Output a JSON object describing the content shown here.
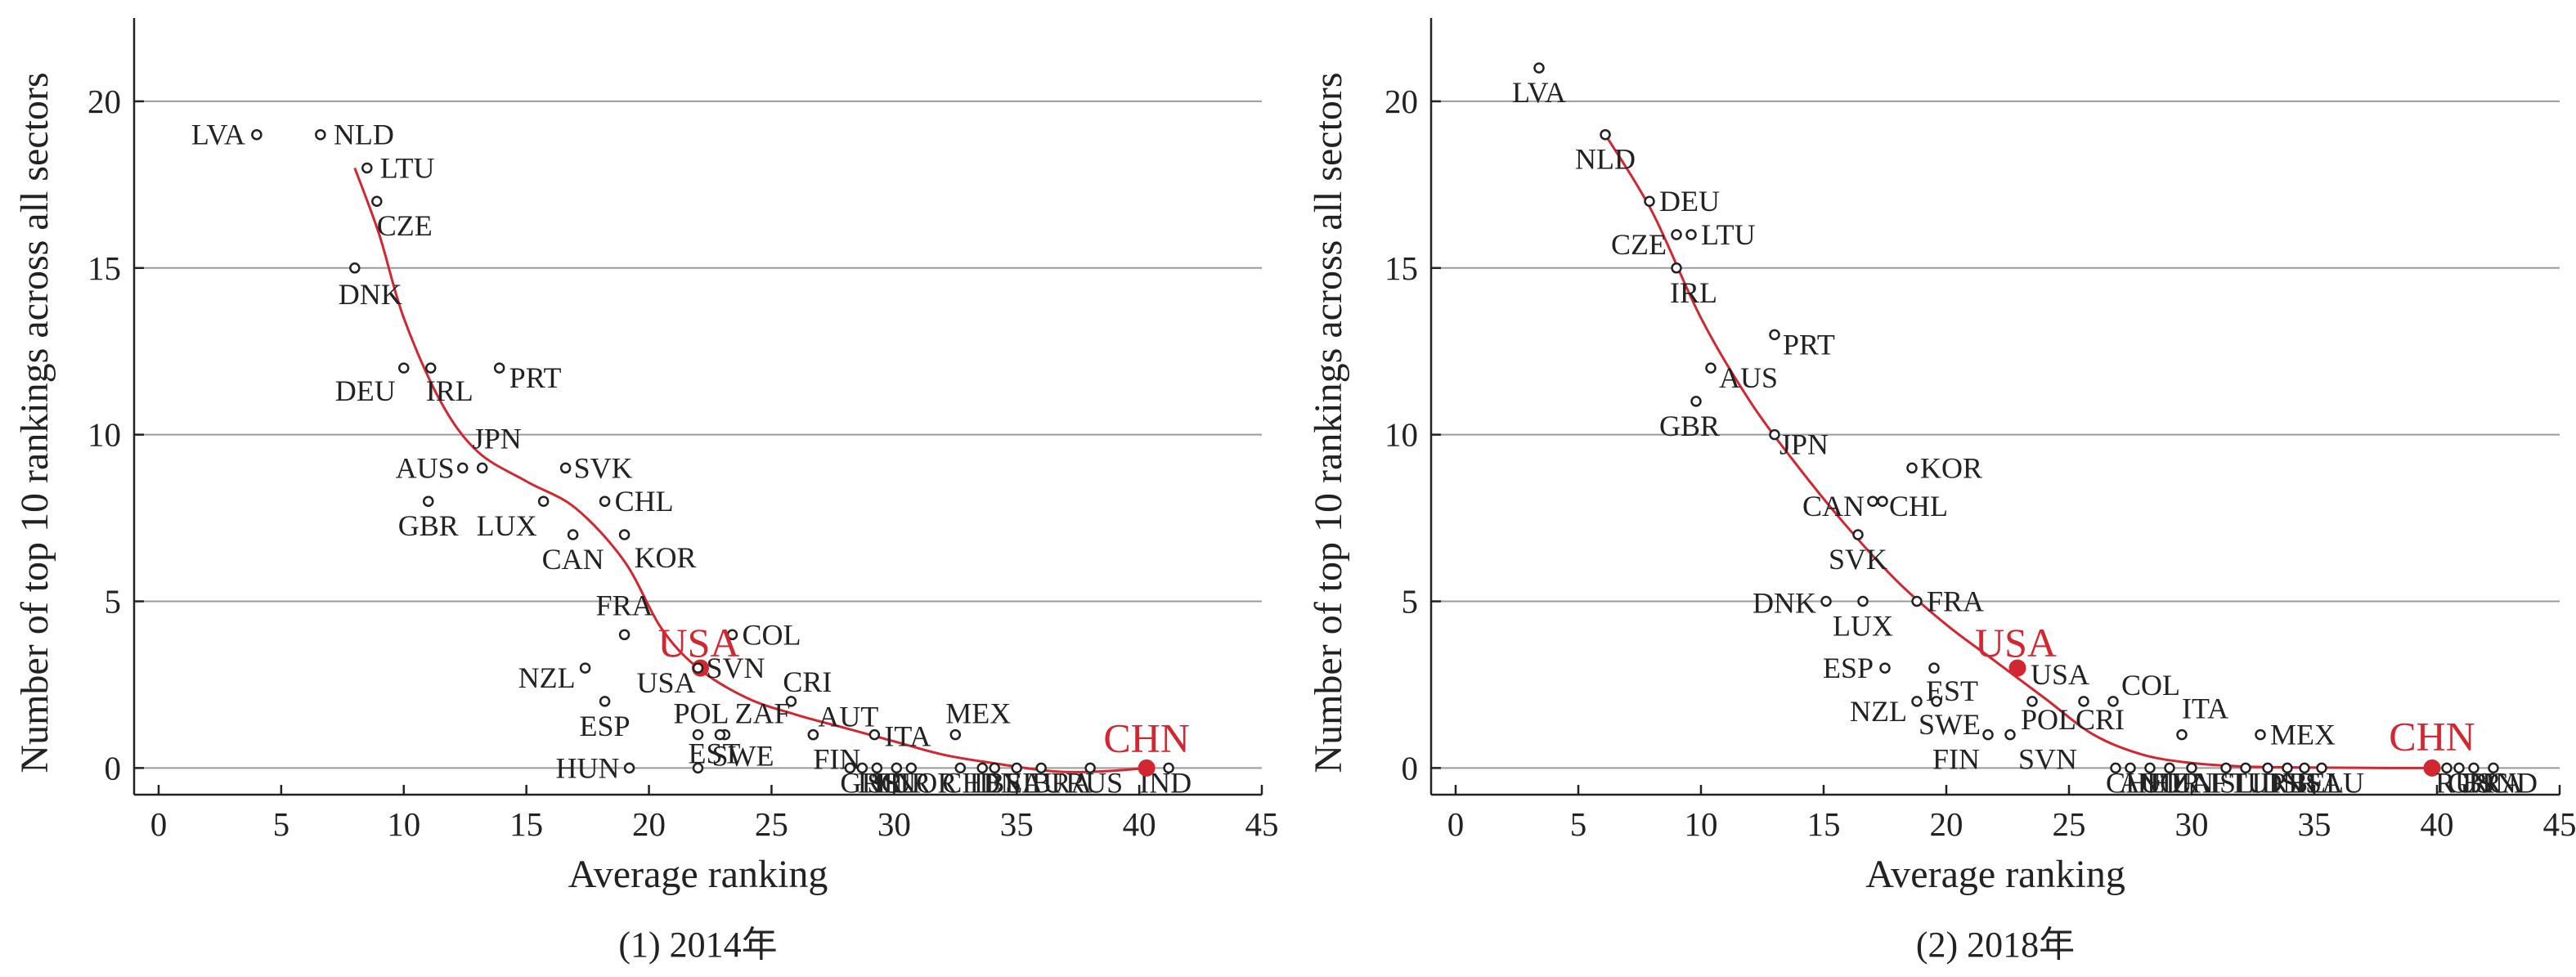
{
  "colors": {
    "accent": "#d22630",
    "ink": "#222222",
    "grid": "#9a9a9a"
  },
  "chart_data": [
    {
      "type": "scatter",
      "caption": "(1) 2014年",
      "xlabel": "Average ranking",
      "ylabel": "Number of top 10 rankings across all sectors",
      "xlim": [
        -1,
        45
      ],
      "ylim": [
        -0.8,
        22.5
      ],
      "xticks": [
        0,
        5,
        10,
        15,
        20,
        25,
        30,
        35,
        40,
        45
      ],
      "yticks": [
        0,
        5,
        10,
        15,
        20
      ],
      "grid": "horizontal",
      "series": [
        {
          "points": [
            {
              "label": "LVA",
              "x": 4.0,
              "y": 19
            },
            {
              "label": "NLD",
              "x": 6.6,
              "y": 19
            },
            {
              "label": "LTU",
              "x": 8.5,
              "y": 18
            },
            {
              "label": "CZE",
              "x": 8.9,
              "y": 17
            },
            {
              "label": "DNK",
              "x": 8.0,
              "y": 15
            },
            {
              "label": "DEU",
              "x": 10.0,
              "y": 12
            },
            {
              "label": "IRL",
              "x": 11.1,
              "y": 12
            },
            {
              "label": "PRT",
              "x": 13.9,
              "y": 12
            },
            {
              "label": "AUS",
              "x": 12.4,
              "y": 9
            },
            {
              "label": "JPN",
              "x": 13.2,
              "y": 9
            },
            {
              "label": "SVK",
              "x": 16.6,
              "y": 9
            },
            {
              "label": "GBR",
              "x": 11.0,
              "y": 8
            },
            {
              "label": "LUX",
              "x": 15.7,
              "y": 8
            },
            {
              "label": "CHL",
              "x": 18.2,
              "y": 8
            },
            {
              "label": "CAN",
              "x": 16.9,
              "y": 7
            },
            {
              "label": "KOR",
              "x": 19.0,
              "y": 7
            },
            {
              "label": "FRA",
              "x": 19.0,
              "y": 4
            },
            {
              "label": "COL",
              "x": 23.4,
              "y": 4
            },
            {
              "label": "NZL",
              "x": 17.4,
              "y": 3
            },
            {
              "label": "USA",
              "x": 22.1,
              "y": 3
            },
            {
              "label": "SVN",
              "x": 22.0,
              "y": 3
            },
            {
              "label": "CRI",
              "x": 25.8,
              "y": 2
            },
            {
              "label": "ESP",
              "x": 18.2,
              "y": 2
            },
            {
              "label": "POL",
              "x": 22.0,
              "y": 1
            },
            {
              "label": "ZAF",
              "x": 23.1,
              "y": 1
            },
            {
              "label": "AUT",
              "x": 26.7,
              "y": 1
            },
            {
              "label": "SWE",
              "x": 22.9,
              "y": 1
            },
            {
              "label": "ITA",
              "x": 29.2,
              "y": 1
            },
            {
              "label": "FIN",
              "x": 26.7,
              "y": 1
            },
            {
              "label": "MEX",
              "x": 32.5,
              "y": 1
            },
            {
              "label": "HUN",
              "x": 19.2,
              "y": 0
            },
            {
              "label": "EST",
              "x": 22.0,
              "y": 0
            },
            {
              "label": "GRC",
              "x": 28.2,
              "y": 0
            },
            {
              "label": "ISR",
              "x": 28.7,
              "y": 0
            },
            {
              "label": "ISL",
              "x": 29.3,
              "y": 0
            },
            {
              "label": "TUR",
              "x": 30.1,
              "y": 0
            },
            {
              "label": "NOR",
              "x": 30.7,
              "y": 0
            },
            {
              "label": "CHE",
              "x": 32.7,
              "y": 0
            },
            {
              "label": "IDN",
              "x": 33.6,
              "y": 0
            },
            {
              "label": "BEL",
              "x": 34.1,
              "y": 0
            },
            {
              "label": "SAU",
              "x": 35.0,
              "y": 0
            },
            {
              "label": "BRA",
              "x": 36.0,
              "y": 0
            },
            {
              "label": "RUS",
              "x": 38.0,
              "y": 0
            },
            {
              "label": "IND",
              "x": 41.2,
              "y": 0
            },
            {
              "label": "CHN",
              "x": 40.3,
              "y": 0
            }
          ]
        }
      ],
      "highlights": [
        "USA",
        "CHN"
      ],
      "fit_line": {
        "x": [
          8.0,
          9.0,
          10.0,
          11.5,
          13.0,
          15.0,
          17.0,
          19.0,
          20.5,
          22.0,
          24.0,
          26.0,
          28.0,
          30.0,
          32.0,
          34.0,
          36.5,
          38.5,
          40.3
        ],
        "y": [
          18,
          16,
          13.5,
          11,
          9.5,
          8.6,
          7.8,
          6.2,
          4.2,
          3.0,
          2.1,
          1.6,
          1.2,
          0.8,
          0.4,
          0.15,
          -0.1,
          -0.1,
          0
        ]
      }
    },
    {
      "type": "scatter",
      "caption": "(2) 2018年",
      "xlabel": "Average ranking",
      "ylabel": "Number of top 10 rankings across all sectors",
      "xlim": [
        -1,
        45
      ],
      "ylim": [
        -0.8,
        22.5
      ],
      "xticks": [
        0,
        5,
        10,
        15,
        20,
        25,
        30,
        35,
        40,
        45
      ],
      "yticks": [
        0,
        5,
        10,
        15,
        20
      ],
      "grid": "horizontal",
      "series": [
        {
          "points": [
            {
              "label": "LVA",
              "x": 3.4,
              "y": 21
            },
            {
              "label": "NLD",
              "x": 6.1,
              "y": 19
            },
            {
              "label": "DEU",
              "x": 7.9,
              "y": 17
            },
            {
              "label": "CZE",
              "x": 9.0,
              "y": 16
            },
            {
              "label": "LTU",
              "x": 9.6,
              "y": 16
            },
            {
              "label": "IRL",
              "x": 9.0,
              "y": 15
            },
            {
              "label": "PRT",
              "x": 13.0,
              "y": 13
            },
            {
              "label": "AUS",
              "x": 10.4,
              "y": 12
            },
            {
              "label": "GBR",
              "x": 9.8,
              "y": 11
            },
            {
              "label": "JPN",
              "x": 13.0,
              "y": 10
            },
            {
              "label": "KOR",
              "x": 18.6,
              "y": 9
            },
            {
              "label": "CAN",
              "x": 17.0,
              "y": 8
            },
            {
              "label": "CHL",
              "x": 17.4,
              "y": 8
            },
            {
              "label": "SVK",
              "x": 16.4,
              "y": 7
            },
            {
              "label": "DNK",
              "x": 15.1,
              "y": 5
            },
            {
              "label": "LUX",
              "x": 16.6,
              "y": 5
            },
            {
              "label": "FRA",
              "x": 18.8,
              "y": 5
            },
            {
              "label": "USA",
              "x": 22.9,
              "y": 3
            },
            {
              "label": "ESP",
              "x": 17.5,
              "y": 3
            },
            {
              "label": "EST",
              "x": 19.5,
              "y": 3
            },
            {
              "label": "COL",
              "x": 26.8,
              "y": 2
            },
            {
              "label": "NZL",
              "x": 18.8,
              "y": 2
            },
            {
              "label": "SWE",
              "x": 19.6,
              "y": 2
            },
            {
              "label": "POL",
              "x": 23.5,
              "y": 2
            },
            {
              "label": "CRI",
              "x": 25.6,
              "y": 2
            },
            {
              "label": "ITA",
              "x": 29.6,
              "y": 1
            },
            {
              "label": "FIN",
              "x": 21.7,
              "y": 1
            },
            {
              "label": "SVN",
              "x": 22.6,
              "y": 1
            },
            {
              "label": "MEX",
              "x": 32.8,
              "y": 1
            },
            {
              "label": "CHE",
              "x": 26.9,
              "y": 0
            },
            {
              "label": "AUT",
              "x": 27.5,
              "y": 0
            },
            {
              "label": "NOR",
              "x": 28.3,
              "y": 0
            },
            {
              "label": "HUN",
              "x": 29.1,
              "y": 0
            },
            {
              "label": "ZAF",
              "x": 30.0,
              "y": 0
            },
            {
              "label": "ISL",
              "x": 31.4,
              "y": 0
            },
            {
              "label": "TUR",
              "x": 32.2,
              "y": 0
            },
            {
              "label": "IDN",
              "x": 33.1,
              "y": 0
            },
            {
              "label": "ISR",
              "x": 33.9,
              "y": 0
            },
            {
              "label": "BEL",
              "x": 34.6,
              "y": 0
            },
            {
              "label": "SAU",
              "x": 35.3,
              "y": 0
            },
            {
              "label": "CHN",
              "x": 39.8,
              "y": 0
            },
            {
              "label": "RUS",
              "x": 40.4,
              "y": 0
            },
            {
              "label": "GRC",
              "x": 40.9,
              "y": 0
            },
            {
              "label": "BRA",
              "x": 41.5,
              "y": 0
            },
            {
              "label": "IND",
              "x": 42.3,
              "y": 0
            }
          ]
        }
      ],
      "highlights": [
        "USA",
        "CHN"
      ],
      "fit_line": {
        "x": [
          6.1,
          8.0,
          10.0,
          12.0,
          14.0,
          16.0,
          18.0,
          20.0,
          22.0,
          24.0,
          26.0,
          28.0,
          30.0,
          32.0,
          34.0,
          36.0,
          38.0,
          39.8
        ],
        "y": [
          19,
          16.7,
          13.5,
          11.0,
          9.0,
          7.2,
          5.6,
          4.3,
          3.2,
          2.1,
          1.0,
          0.4,
          0.15,
          0.05,
          0.02,
          0.01,
          0,
          0
        ]
      }
    }
  ]
}
